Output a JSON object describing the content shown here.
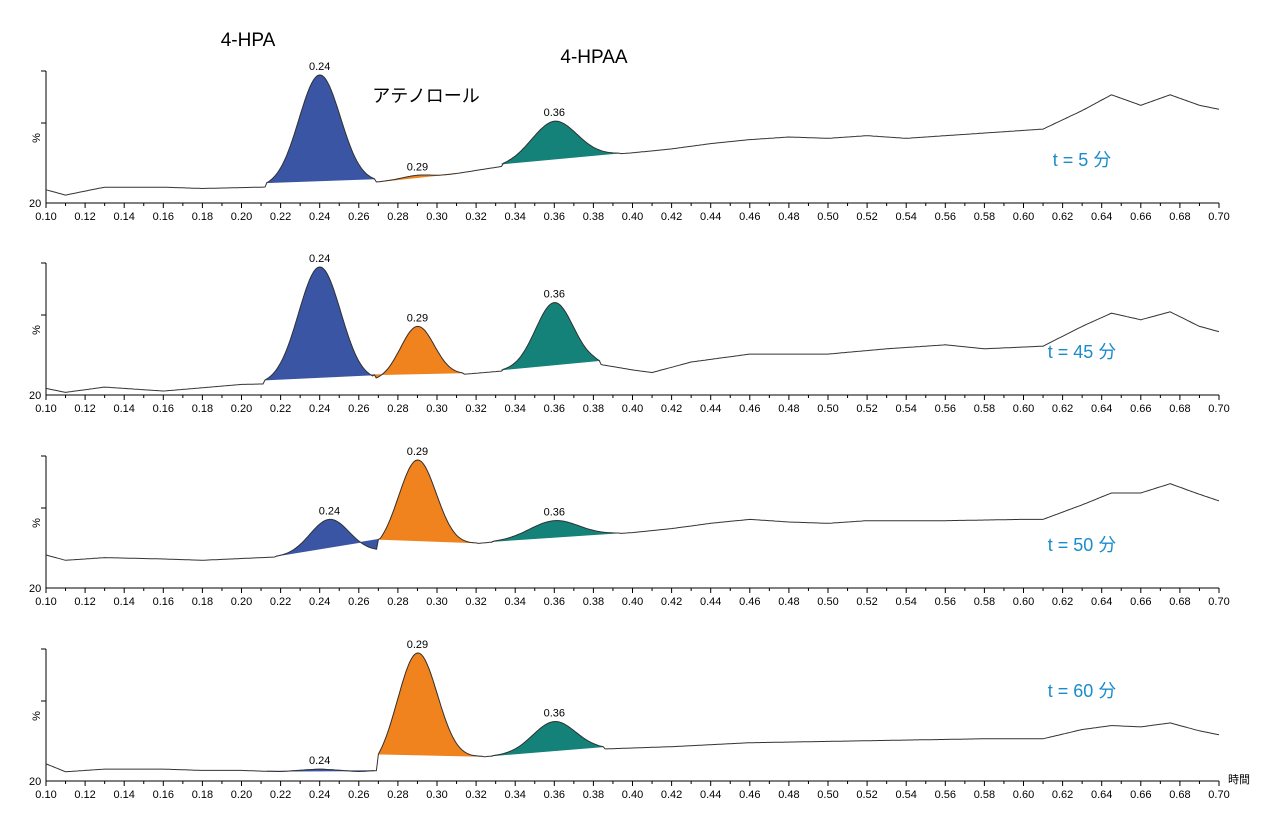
{
  "chart_data": {
    "type": "line",
    "title": "",
    "xlabel": "時間",
    "ylabel": "%",
    "y_axis_bottom_label": "20",
    "xlim": [
      0.1,
      0.7
    ],
    "x_ticks": [
      "0.10",
      "0.12",
      "0.14",
      "0.16",
      "0.18",
      "0.20",
      "0.22",
      "0.24",
      "0.26",
      "0.28",
      "0.30",
      "0.32",
      "0.34",
      "0.36",
      "0.38",
      "0.40",
      "0.42",
      "0.44",
      "0.46",
      "0.48",
      "0.50",
      "0.52",
      "0.54",
      "0.56",
      "0.58",
      "0.60",
      "0.62",
      "0.64",
      "0.66",
      "0.68",
      "0.70"
    ],
    "compounds": [
      {
        "name": "4-HPA",
        "color": "#3a55a4",
        "retention": 0.24
      },
      {
        "name": "アテノロール",
        "color": "#f0831e",
        "retention": 0.29
      },
      {
        "name": "4-HPAA",
        "color": "#15827a",
        "retention": 0.36
      }
    ],
    "panels": [
      {
        "time_label": "t = 5 分",
        "baseline": [
          [
            0.1,
            0.1
          ],
          [
            0.11,
            0.06
          ],
          [
            0.13,
            0.12
          ],
          [
            0.16,
            0.12
          ],
          [
            0.18,
            0.11
          ],
          [
            0.21,
            0.12
          ],
          [
            0.24,
            0.14
          ],
          [
            0.27,
            0.16
          ],
          [
            0.3,
            0.2
          ],
          [
            0.33,
            0.27
          ],
          [
            0.36,
            0.34
          ],
          [
            0.4,
            0.38
          ],
          [
            0.42,
            0.41
          ],
          [
            0.44,
            0.45
          ],
          [
            0.46,
            0.48
          ],
          [
            0.48,
            0.5
          ],
          [
            0.5,
            0.49
          ],
          [
            0.52,
            0.51
          ],
          [
            0.54,
            0.49
          ],
          [
            0.56,
            0.51
          ],
          [
            0.58,
            0.53
          ],
          [
            0.61,
            0.56
          ],
          [
            0.63,
            0.7
          ],
          [
            0.645,
            0.82
          ],
          [
            0.66,
            0.74
          ],
          [
            0.675,
            0.82
          ],
          [
            0.69,
            0.74
          ],
          [
            0.7,
            0.71
          ]
        ],
        "peaks": [
          {
            "compound": "4-HPA",
            "apex": 0.24,
            "height": 0.97,
            "start": 0.213,
            "end": 0.268,
            "label": "0.24"
          },
          {
            "compound": "アテノロール",
            "apex": 0.29,
            "height": 0.21,
            "start": 0.27,
            "end": 0.31,
            "label": "0.29"
          },
          {
            "compound": "4-HPAA",
            "apex": 0.36,
            "height": 0.62,
            "start": 0.333,
            "end": 0.393,
            "label": "0.36"
          }
        ]
      },
      {
        "time_label": "t = 45 分",
        "baseline": [
          [
            0.1,
            0.05
          ],
          [
            0.11,
            0.02
          ],
          [
            0.13,
            0.06
          ],
          [
            0.16,
            0.03
          ],
          [
            0.2,
            0.08
          ],
          [
            0.23,
            0.09
          ],
          [
            0.26,
            0.1
          ],
          [
            0.3,
            0.14
          ],
          [
            0.34,
            0.19
          ],
          [
            0.38,
            0.24
          ],
          [
            0.4,
            0.19
          ],
          [
            0.41,
            0.17
          ],
          [
            0.43,
            0.25
          ],
          [
            0.46,
            0.31
          ],
          [
            0.5,
            0.31
          ],
          [
            0.53,
            0.35
          ],
          [
            0.56,
            0.38
          ],
          [
            0.58,
            0.35
          ],
          [
            0.61,
            0.37
          ],
          [
            0.63,
            0.52
          ],
          [
            0.645,
            0.62
          ],
          [
            0.66,
            0.57
          ],
          [
            0.675,
            0.63
          ],
          [
            0.69,
            0.52
          ],
          [
            0.7,
            0.48
          ]
        ],
        "peaks": [
          {
            "compound": "4-HPA",
            "apex": 0.24,
            "height": 0.97,
            "start": 0.212,
            "end": 0.268,
            "label": "0.24"
          },
          {
            "compound": "アテノロール",
            "apex": 0.29,
            "height": 0.52,
            "start": 0.268,
            "end": 0.313,
            "label": "0.29"
          },
          {
            "compound": "4-HPAA",
            "apex": 0.36,
            "height": 0.7,
            "start": 0.333,
            "end": 0.383,
            "label": "0.36"
          }
        ]
      },
      {
        "time_label": "t = 50 分",
        "baseline": [
          [
            0.1,
            0.25
          ],
          [
            0.11,
            0.21
          ],
          [
            0.13,
            0.23
          ],
          [
            0.16,
            0.22
          ],
          [
            0.18,
            0.21
          ],
          [
            0.21,
            0.23
          ],
          [
            0.24,
            0.25
          ],
          [
            0.27,
            0.28
          ],
          [
            0.3,
            0.31
          ],
          [
            0.33,
            0.35
          ],
          [
            0.36,
            0.38
          ],
          [
            0.4,
            0.42
          ],
          [
            0.42,
            0.45
          ],
          [
            0.44,
            0.49
          ],
          [
            0.46,
            0.52
          ],
          [
            0.48,
            0.5
          ],
          [
            0.5,
            0.49
          ],
          [
            0.52,
            0.51
          ],
          [
            0.56,
            0.51
          ],
          [
            0.6,
            0.52
          ],
          [
            0.61,
            0.52
          ],
          [
            0.63,
            0.63
          ],
          [
            0.645,
            0.72
          ],
          [
            0.66,
            0.72
          ],
          [
            0.675,
            0.79
          ],
          [
            0.69,
            0.71
          ],
          [
            0.7,
            0.66
          ]
        ],
        "peaks": [
          {
            "compound": "4-HPA",
            "apex": 0.245,
            "height": 0.52,
            "start": 0.218,
            "end": 0.27,
            "label": "0.24"
          },
          {
            "compound": "アテノロール",
            "apex": 0.29,
            "height": 0.97,
            "start": 0.27,
            "end": 0.32,
            "label": "0.29"
          },
          {
            "compound": "4-HPAA",
            "apex": 0.36,
            "height": 0.51,
            "start": 0.328,
            "end": 0.393,
            "label": "0.36"
          }
        ]
      },
      {
        "time_label": "t = 60 分",
        "baseline": [
          [
            0.1,
            0.13
          ],
          [
            0.11,
            0.07
          ],
          [
            0.13,
            0.09
          ],
          [
            0.16,
            0.09
          ],
          [
            0.18,
            0.08
          ],
          [
            0.2,
            0.08
          ],
          [
            0.22,
            0.07
          ],
          [
            0.24,
            0.08
          ],
          [
            0.26,
            0.07
          ],
          [
            0.27,
            0.08
          ],
          [
            0.3,
            0.14
          ],
          [
            0.32,
            0.18
          ],
          [
            0.34,
            0.2
          ],
          [
            0.38,
            0.24
          ],
          [
            0.42,
            0.26
          ],
          [
            0.46,
            0.29
          ],
          [
            0.5,
            0.3
          ],
          [
            0.54,
            0.31
          ],
          [
            0.58,
            0.32
          ],
          [
            0.61,
            0.32
          ],
          [
            0.63,
            0.39
          ],
          [
            0.645,
            0.42
          ],
          [
            0.66,
            0.41
          ],
          [
            0.675,
            0.44
          ],
          [
            0.69,
            0.38
          ],
          [
            0.7,
            0.35
          ]
        ],
        "peaks": [
          {
            "compound": "4-HPA",
            "apex": 0.24,
            "height": 0.09,
            "start": 0.213,
            "end": 0.268,
            "label": "0.24"
          },
          {
            "compound": "アテノロール",
            "apex": 0.29,
            "height": 0.97,
            "start": 0.27,
            "end": 0.323,
            "label": "0.29"
          },
          {
            "compound": "4-HPAA",
            "apex": 0.36,
            "height": 0.45,
            "start": 0.328,
            "end": 0.385,
            "label": "0.36"
          }
        ]
      }
    ],
    "annotation_color": "#1a8ccc"
  }
}
